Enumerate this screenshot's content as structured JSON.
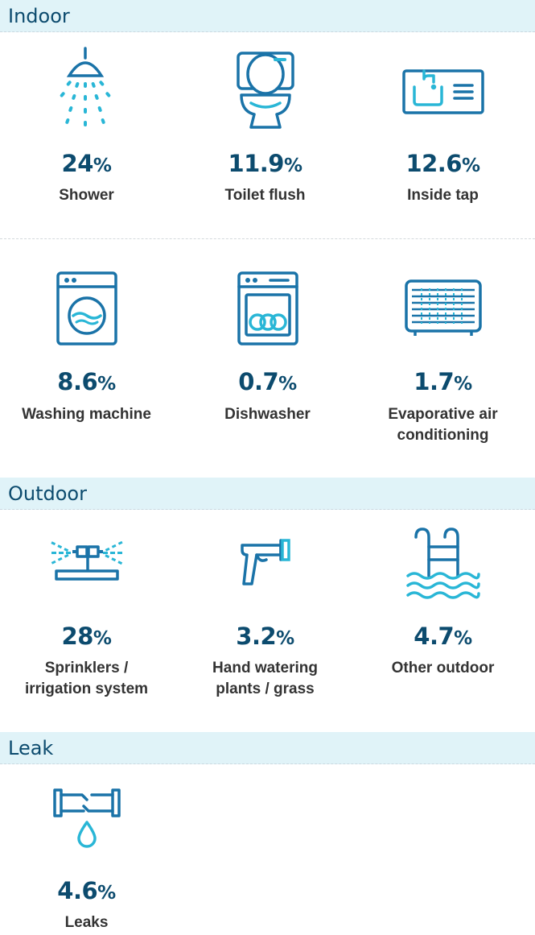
{
  "colors": {
    "navy": "#0c4b6e",
    "blue": "#1a73a8",
    "cyan": "#29b6d6",
    "header_bg": "#e0f3f8",
    "label": "#333333"
  },
  "sections": {
    "indoor": {
      "title": "Indoor",
      "items": [
        {
          "icon": "shower-icon",
          "value": "24",
          "unit": "%",
          "label": "Shower"
        },
        {
          "icon": "toilet-icon",
          "value": "11.9",
          "unit": "%",
          "label": "Toilet flush"
        },
        {
          "icon": "sink-tap-icon",
          "value": "12.6",
          "unit": "%",
          "label": "Inside tap"
        },
        {
          "icon": "washing-machine-icon",
          "value": "8.6",
          "unit": "%",
          "label": "Washing machine"
        },
        {
          "icon": "dishwasher-icon",
          "value": "0.7",
          "unit": "%",
          "label": "Dishwasher"
        },
        {
          "icon": "evaporative-cooler-icon",
          "value": "1.7",
          "unit": "%",
          "label_line1": "Evaporative air",
          "label_line2": "conditioning"
        }
      ]
    },
    "outdoor": {
      "title": "Outdoor",
      "items": [
        {
          "icon": "sprinkler-icon",
          "value": "28",
          "unit": "%",
          "label_line1": "Sprinklers /",
          "label_line2": "irrigation system"
        },
        {
          "icon": "hose-nozzle-icon",
          "value": "3.2",
          "unit": "%",
          "label_line1": "Hand watering",
          "label_line2": "plants / grass"
        },
        {
          "icon": "pool-ladder-icon",
          "value": "4.7",
          "unit": "%",
          "label": "Other outdoor"
        }
      ]
    },
    "leak": {
      "title": "Leak",
      "items": [
        {
          "icon": "leaking-pipe-icon",
          "value": "4.6",
          "unit": "%",
          "label": "Leaks"
        }
      ]
    }
  }
}
